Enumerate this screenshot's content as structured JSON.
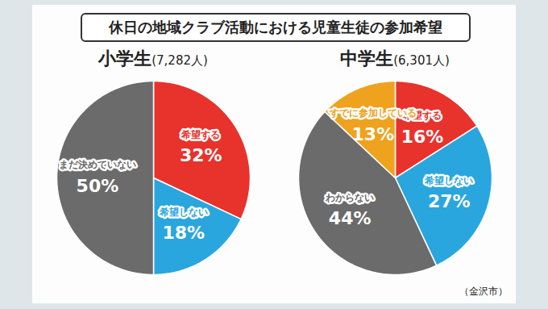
{
  "title": "休日の地域クラブ活動における児童生徒の参加希望",
  "caption": "（金沢市）",
  "chart_data": [
    {
      "type": "pie",
      "title": "小学生",
      "subtitle": "(7,282人)",
      "categories": [
        "希望する",
        "希望しない",
        "まだ決めていない"
      ],
      "values": [
        32,
        18,
        50
      ],
      "value_labels": [
        "32%",
        "18%",
        "50%"
      ],
      "colors": [
        "#e8322c",
        "#2aa6de",
        "#6b6b6b"
      ],
      "data_labels": true
    },
    {
      "type": "pie",
      "title": "中学生",
      "subtitle": "(6,301人)",
      "categories": [
        "希望する",
        "希望しない",
        "わからない",
        "すでに参加している"
      ],
      "values": [
        16,
        27,
        44,
        13
      ],
      "value_labels": [
        "16%",
        "27%",
        "44%",
        "13%"
      ],
      "colors": [
        "#e8322c",
        "#2aa6de",
        "#6b6b6b",
        "#eea21e"
      ],
      "data_labels": true
    }
  ]
}
